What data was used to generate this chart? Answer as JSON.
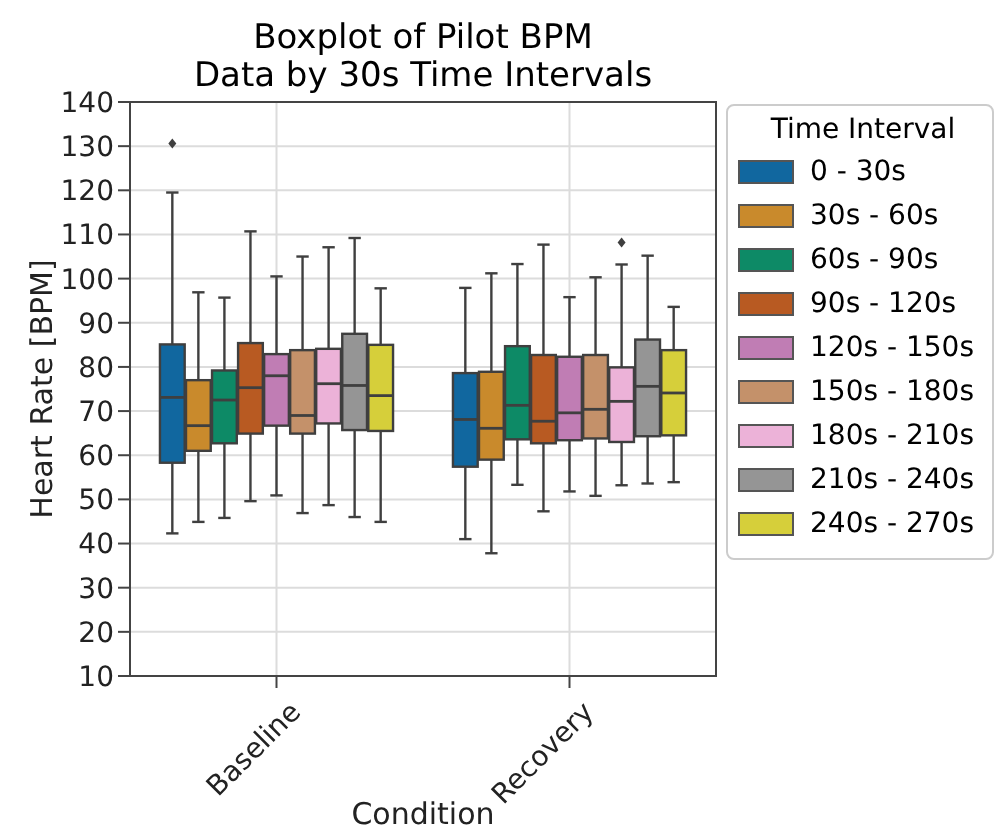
{
  "chart_data": {
    "type": "box",
    "title": "Boxplot of Pilot BPM",
    "subtitle": "Data by 30s Time Intervals",
    "xlabel": "Condition",
    "ylabel": "Heart Rate [BPM]",
    "legend_title": "Time Interval",
    "categories": [
      "Baseline",
      "Recovery"
    ],
    "ylim": [
      10,
      140
    ],
    "yticks": [
      10,
      20,
      30,
      40,
      50,
      60,
      70,
      80,
      90,
      100,
      110,
      120,
      130,
      140
    ],
    "grid": true,
    "legend": "right",
    "marker": "diamond",
    "series": [
      {
        "name": "0 - 30s",
        "color": "#11679f",
        "boxes": [
          {
            "low": 42.3,
            "q1": 58.3,
            "median": 73.1,
            "q3": 85.1,
            "high": 119.5,
            "outliers": [
              130.6
            ]
          },
          {
            "low": 41,
            "q1": 57.4,
            "median": 68.1,
            "q3": 78.6,
            "high": 97.9
          }
        ]
      },
      {
        "name": "30s - 60s",
        "color": "#c98a2c",
        "boxes": [
          {
            "low": 44.9,
            "q1": 61,
            "median": 66.7,
            "q3": 77,
            "high": 96.9
          },
          {
            "low": 37.8,
            "q1": 59,
            "median": 66.1,
            "q3": 78.9,
            "high": 101.2
          }
        ]
      },
      {
        "name": "60s - 90s",
        "color": "#0d8a66",
        "boxes": [
          {
            "low": 45.8,
            "q1": 62.7,
            "median": 72.5,
            "q3": 79.2,
            "high": 95.7
          },
          {
            "low": 53.3,
            "q1": 63.6,
            "median": 71.3,
            "q3": 84.7,
            "high": 103.3
          }
        ]
      },
      {
        "name": "90s - 120s",
        "color": "#b85a22",
        "boxes": [
          {
            "low": 49.6,
            "q1": 64.9,
            "median": 75.3,
            "q3": 85.4,
            "high": 110.7
          },
          {
            "low": 47.3,
            "q1": 62.7,
            "median": 67.7,
            "q3": 82.7,
            "high": 107.7
          }
        ]
      },
      {
        "name": "120s - 150s",
        "color": "#c07db4",
        "boxes": [
          {
            "low": 50.9,
            "q1": 66.7,
            "median": 78,
            "q3": 82.9,
            "high": 100.5
          },
          {
            "low": 51.8,
            "q1": 63.4,
            "median": 69.6,
            "q3": 82.3,
            "high": 95.8
          }
        ]
      },
      {
        "name": "150s - 180s",
        "color": "#c4916a",
        "boxes": [
          {
            "low": 46.9,
            "q1": 64.9,
            "median": 69,
            "q3": 83.8,
            "high": 105
          },
          {
            "low": 50.8,
            "q1": 63.8,
            "median": 70.4,
            "q3": 82.7,
            "high": 100.3
          }
        ]
      },
      {
        "name": "180s - 210s",
        "color": "#ecb2d8",
        "boxes": [
          {
            "low": 48.7,
            "q1": 67.2,
            "median": 76.2,
            "q3": 84.1,
            "high": 107.1
          },
          {
            "low": 53.2,
            "q1": 63,
            "median": 72.2,
            "q3": 79.9,
            "high": 103.2,
            "outliers": [
              108.2
            ]
          }
        ]
      },
      {
        "name": "210s - 240s",
        "color": "#959595",
        "boxes": [
          {
            "low": 46,
            "q1": 65.7,
            "median": 75.8,
            "q3": 87.5,
            "high": 109.2
          },
          {
            "low": 53.6,
            "q1": 64.3,
            "median": 75.6,
            "q3": 86.2,
            "high": 105.2
          }
        ]
      },
      {
        "name": "240s - 270s",
        "color": "#d6cf3a",
        "boxes": [
          {
            "low": 44.9,
            "q1": 65.5,
            "median": 73.5,
            "q3": 85,
            "high": 97.8
          },
          {
            "low": 53.9,
            "q1": 64.5,
            "median": 74.1,
            "q3": 83.8,
            "high": 93.6
          }
        ]
      }
    ]
  }
}
